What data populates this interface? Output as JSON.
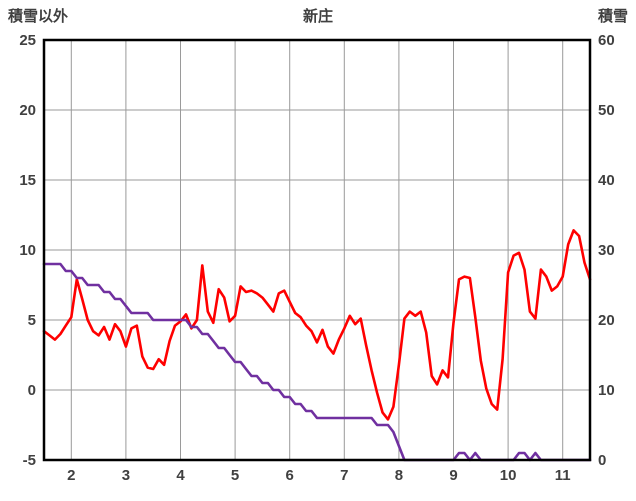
{
  "chart_data": {
    "type": "line",
    "title": "新庄",
    "x_axis": {
      "min": 1.5,
      "max": 11.5,
      "ticks": [
        2,
        3,
        4,
        5,
        6,
        7,
        8,
        9,
        10,
        11
      ]
    },
    "left_axis": {
      "label": "積雪以外",
      "min": -5,
      "max": 25,
      "ticks": [
        25,
        20,
        15,
        10,
        5,
        0,
        -5
      ]
    },
    "right_axis": {
      "label": "積雪",
      "min": 0,
      "max": 60,
      "ticks": [
        60,
        50,
        40,
        30,
        20,
        10,
        0
      ]
    },
    "grid": true,
    "legend": false,
    "colors": {
      "grid": "#9a9a9a",
      "border": "#000000",
      "text": "#404040",
      "background": "#ffffff"
    },
    "x": [
      1.5,
      1.6,
      1.7,
      1.8,
      1.9,
      2.0,
      2.1,
      2.2,
      2.3,
      2.4,
      2.5,
      2.6,
      2.7,
      2.8,
      2.9,
      3.0,
      3.1,
      3.2,
      3.3,
      3.4,
      3.5,
      3.6,
      3.7,
      3.8,
      3.9,
      4.0,
      4.1,
      4.2,
      4.3,
      4.4,
      4.5,
      4.6,
      4.7,
      4.8,
      4.9,
      5.0,
      5.1,
      5.2,
      5.3,
      5.4,
      5.5,
      5.6,
      5.7,
      5.8,
      5.9,
      6.0,
      6.1,
      6.2,
      6.3,
      6.4,
      6.5,
      6.6,
      6.7,
      6.8,
      6.9,
      7.0,
      7.1,
      7.2,
      7.3,
      7.4,
      7.5,
      7.6,
      7.7,
      7.8,
      7.9,
      8.0,
      8.1,
      8.2,
      8.3,
      8.4,
      8.5,
      8.6,
      8.7,
      8.8,
      8.9,
      9.0,
      9.1,
      9.2,
      9.3,
      9.4,
      9.5,
      9.6,
      9.7,
      9.8,
      9.9,
      10.0,
      10.1,
      10.2,
      10.3,
      10.4,
      10.5,
      10.6,
      10.7,
      10.8,
      10.9,
      11.0,
      11.1,
      11.2,
      11.3,
      11.4,
      11.5
    ],
    "series": [
      {
        "key": "other-than-snow",
        "name": "積雪以外",
        "axis": "left",
        "color": "#ff0000",
        "values": [
          4.2,
          3.9,
          3.6,
          4.0,
          4.6,
          5.2,
          7.9,
          6.5,
          5.0,
          4.2,
          3.9,
          4.5,
          3.6,
          4.7,
          4.2,
          3.1,
          4.4,
          4.6,
          2.4,
          1.6,
          1.5,
          2.2,
          1.8,
          3.5,
          4.6,
          4.9,
          5.4,
          4.4,
          5.0,
          8.9,
          5.6,
          4.8,
          7.2,
          6.6,
          4.9,
          5.3,
          7.4,
          7.0,
          7.1,
          6.9,
          6.6,
          6.1,
          5.6,
          6.9,
          7.1,
          6.3,
          5.5,
          5.2,
          4.6,
          4.2,
          3.4,
          4.3,
          3.1,
          2.6,
          3.6,
          4.4,
          5.3,
          4.7,
          5.1,
          3.2,
          1.4,
          -0.2,
          -1.6,
          -2.1,
          -1.2,
          1.8,
          5.1,
          5.6,
          5.3,
          5.6,
          4.1,
          1.0,
          0.4,
          1.4,
          0.9,
          4.8,
          7.9,
          8.1,
          8.0,
          5.2,
          2.1,
          0.1,
          -1.0,
          -1.4,
          2.2,
          8.4,
          9.6,
          9.8,
          8.6,
          5.6,
          5.1,
          8.6,
          8.1,
          7.1,
          7.4,
          8.1,
          10.4,
          11.4,
          11.0,
          9.1,
          7.9
        ]
      },
      {
        "key": "snow-cover",
        "name": "積雪",
        "axis": "right",
        "color": "#7030a0",
        "values": [
          28,
          28,
          28,
          28,
          27,
          27,
          26,
          26,
          25,
          25,
          25,
          24,
          24,
          23,
          23,
          22,
          21,
          21,
          21,
          21,
          20,
          20,
          20,
          20,
          20,
          20,
          20,
          19,
          19,
          18,
          18,
          17,
          16,
          16,
          15,
          14,
          14,
          13,
          12,
          12,
          11,
          11,
          10,
          10,
          9,
          9,
          8,
          8,
          7,
          7,
          6,
          6,
          6,
          6,
          6,
          6,
          6,
          6,
          6,
          6,
          6,
          5,
          5,
          5,
          4,
          2,
          0,
          0,
          0,
          0,
          0,
          0,
          0,
          0,
          0,
          0,
          1,
          1,
          0,
          1,
          0,
          0,
          0,
          0,
          0,
          0,
          0,
          1,
          1,
          0,
          1,
          0,
          0,
          0,
          0,
          0,
          0,
          0,
          0,
          0,
          0
        ]
      }
    ]
  }
}
